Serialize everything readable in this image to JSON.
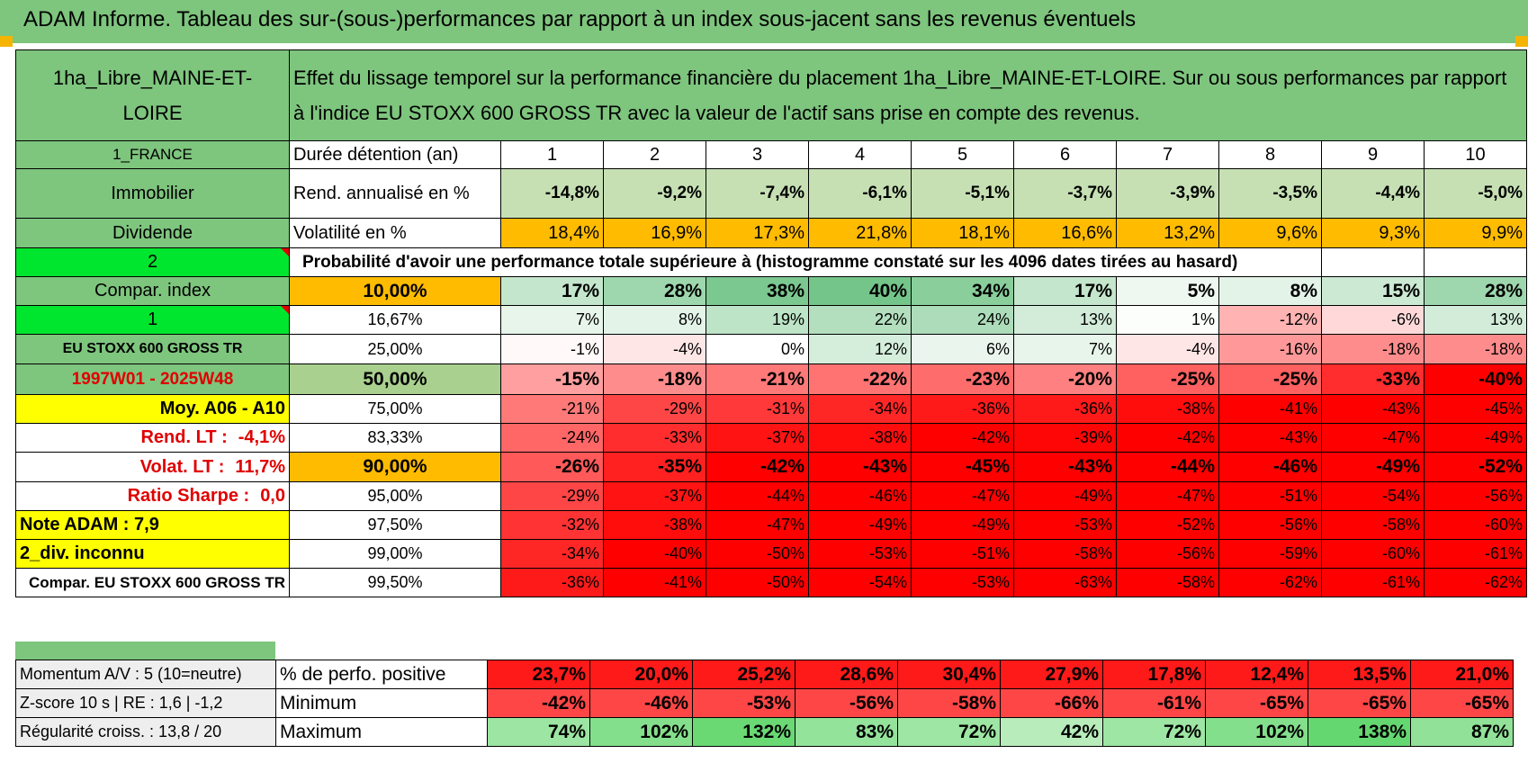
{
  "title": "ADAM Informe. Tableau des sur-(sous-)performances par rapport à un index sous-jacent sans les revenus éventuels",
  "header": {
    "placement_name": "1ha_Libre_MAINE-ET-LOIRE",
    "description": "Effet du lissage temporel sur la performance financière du placement 1ha_Libre_MAINE-ET-LOIRE. Sur ou sous performances par rapport à l'indice EU STOXX 600 GROSS TR avec la valeur de l'actif sans prise en compte des revenus."
  },
  "side": {
    "country": "1_FRANCE",
    "category": "Immobilier",
    "type": "Dividende",
    "num2": "2",
    "compar_index": "Compar. index",
    "num1": "1",
    "index_name": "EU STOXX 600 GROSS TR",
    "period": "1997W01 - 2025W48",
    "moy": "Moy. A06 - A10",
    "rend_lt_label": "Rend. LT :",
    "rend_lt_value": "-4,1%",
    "volat_lt_label": "Volat. LT :",
    "volat_lt_value": "11,7%",
    "sharpe_label": "Ratio Sharpe :",
    "sharpe_value": "0,0",
    "note": "Note ADAM : 7,9",
    "div": "2_div. inconnu",
    "compar_full": "Compar. EU STOXX 600 GROSS TR"
  },
  "rows_labels": {
    "duree": "Durée détention (an)",
    "rend": "Rend. annualisé en %",
    "vol": "Volatilité en %",
    "proba": "Probabilité d'avoir une performance totale supérieure à (histogramme constaté sur les 4096 dates tirées au hasard)"
  },
  "years": [
    "1",
    "2",
    "3",
    "4",
    "5",
    "6",
    "7",
    "8",
    "9",
    "10"
  ],
  "rend": [
    "-14,8%",
    "-9,2%",
    "-7,4%",
    "-6,1%",
    "-5,1%",
    "-3,7%",
    "-3,9%",
    "-3,5%",
    "-4,4%",
    "-5,0%"
  ],
  "vol": [
    "18,4%",
    "16,9%",
    "17,3%",
    "21,8%",
    "18,1%",
    "16,6%",
    "13,2%",
    "9,6%",
    "9,3%",
    "9,9%"
  ],
  "perc_rows": [
    {
      "p": "10,00%",
      "bold": true,
      "vals": [
        "17%",
        "28%",
        "38%",
        "40%",
        "34%",
        "17%",
        "5%",
        "8%",
        "15%",
        "28%"
      ]
    },
    {
      "p": "16,67%",
      "bold": false,
      "vals": [
        "7%",
        "8%",
        "19%",
        "22%",
        "24%",
        "13%",
        "1%",
        "-12%",
        "-6%",
        "13%"
      ]
    },
    {
      "p": "25,00%",
      "bold": false,
      "vals": [
        "-1%",
        "-4%",
        "0%",
        "12%",
        "6%",
        "7%",
        "-4%",
        "-16%",
        "-18%",
        "-18%"
      ]
    },
    {
      "p": "50,00%",
      "bold": true,
      "vals": [
        "-15%",
        "-18%",
        "-21%",
        "-22%",
        "-23%",
        "-20%",
        "-25%",
        "-25%",
        "-33%",
        "-40%"
      ]
    },
    {
      "p": "75,00%",
      "bold": false,
      "vals": [
        "-21%",
        "-29%",
        "-31%",
        "-34%",
        "-36%",
        "-36%",
        "-38%",
        "-41%",
        "-43%",
        "-45%"
      ]
    },
    {
      "p": "83,33%",
      "bold": false,
      "vals": [
        "-24%",
        "-33%",
        "-37%",
        "-38%",
        "-42%",
        "-39%",
        "-42%",
        "-43%",
        "-47%",
        "-49%"
      ]
    },
    {
      "p": "90,00%",
      "bold": true,
      "vals": [
        "-26%",
        "-35%",
        "-42%",
        "-43%",
        "-45%",
        "-43%",
        "-44%",
        "-46%",
        "-49%",
        "-52%"
      ]
    },
    {
      "p": "95,00%",
      "bold": false,
      "vals": [
        "-29%",
        "-37%",
        "-44%",
        "-46%",
        "-47%",
        "-49%",
        "-47%",
        "-51%",
        "-54%",
        "-56%"
      ]
    },
    {
      "p": "97,50%",
      "bold": false,
      "vals": [
        "-32%",
        "-38%",
        "-47%",
        "-49%",
        "-49%",
        "-53%",
        "-52%",
        "-56%",
        "-58%",
        "-60%"
      ]
    },
    {
      "p": "99,00%",
      "bold": false,
      "vals": [
        "-34%",
        "-40%",
        "-50%",
        "-53%",
        "-51%",
        "-58%",
        "-56%",
        "-59%",
        "-60%",
        "-61%"
      ]
    },
    {
      "p": "99,50%",
      "bold": false,
      "vals": [
        "-36%",
        "-41%",
        "-50%",
        "-54%",
        "-53%",
        "-63%",
        "-58%",
        "-62%",
        "-61%",
        "-62%"
      ]
    }
  ],
  "bottom": {
    "momentum": "Momentum A/V : 5 (10=neutre)",
    "zscore": "Z-score 10 s | RE : 1,6 | -1,2",
    "regul": "Régularité croiss. : 13,8 / 20",
    "pos_label": "% de perfo. positive",
    "min_label": "Minimum",
    "max_label": "Maximum",
    "pos": [
      "23,7%",
      "20,0%",
      "25,2%",
      "28,6%",
      "30,4%",
      "27,9%",
      "17,8%",
      "12,4%",
      "13,5%",
      "21,0%"
    ],
    "min": [
      "-42%",
      "-46%",
      "-53%",
      "-56%",
      "-58%",
      "-66%",
      "-61%",
      "-65%",
      "-65%",
      "-65%"
    ],
    "max": [
      "74%",
      "102%",
      "132%",
      "83%",
      "72%",
      "42%",
      "72%",
      "102%",
      "138%",
      "87%"
    ]
  },
  "colors": {
    "header_green": "#7ec57e",
    "lime": "#00e62e",
    "yellow": "#ffff00",
    "orange": "#ffbb00",
    "neg_red": "#ff0000",
    "pos_green": "#63be7b"
  }
}
